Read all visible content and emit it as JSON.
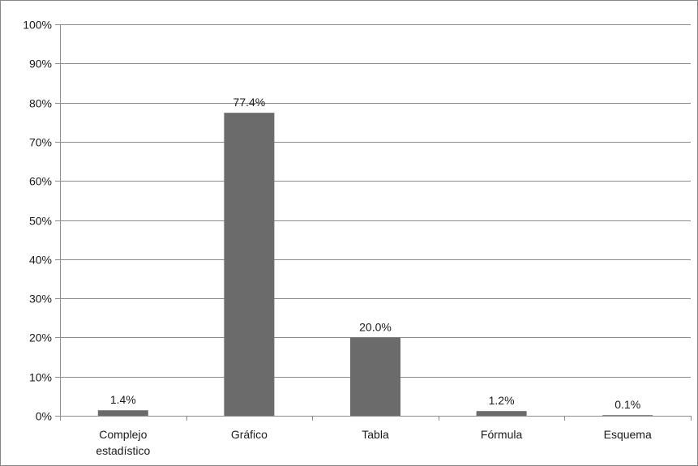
{
  "chart_data": {
    "type": "bar",
    "categories": [
      [
        "Complejo",
        "estadístico"
      ],
      [
        "Gráfico"
      ],
      [
        "Tabla"
      ],
      [
        "Fórmula"
      ],
      [
        "Esquema"
      ]
    ],
    "values": [
      1.4,
      77.4,
      20.0,
      1.2,
      0.1
    ],
    "data_labels": [
      "1.4%",
      "77.4%",
      "20.0%",
      "1.2%",
      "0.1%"
    ],
    "ylim": [
      0,
      100
    ],
    "yticks": [
      0,
      10,
      20,
      30,
      40,
      50,
      60,
      70,
      80,
      90,
      100
    ],
    "ytick_labels": [
      "0%",
      "10%",
      "20%",
      "30%",
      "40%",
      "50%",
      "60%",
      "70%",
      "80%",
      "90%",
      "100%"
    ],
    "grid": true,
    "legend": "none",
    "title": "",
    "xlabel": "",
    "ylabel": "",
    "colors": {
      "bar": "#6b6b6b",
      "grid": "#8c8c8c",
      "axis": "#8c8c8c"
    }
  }
}
